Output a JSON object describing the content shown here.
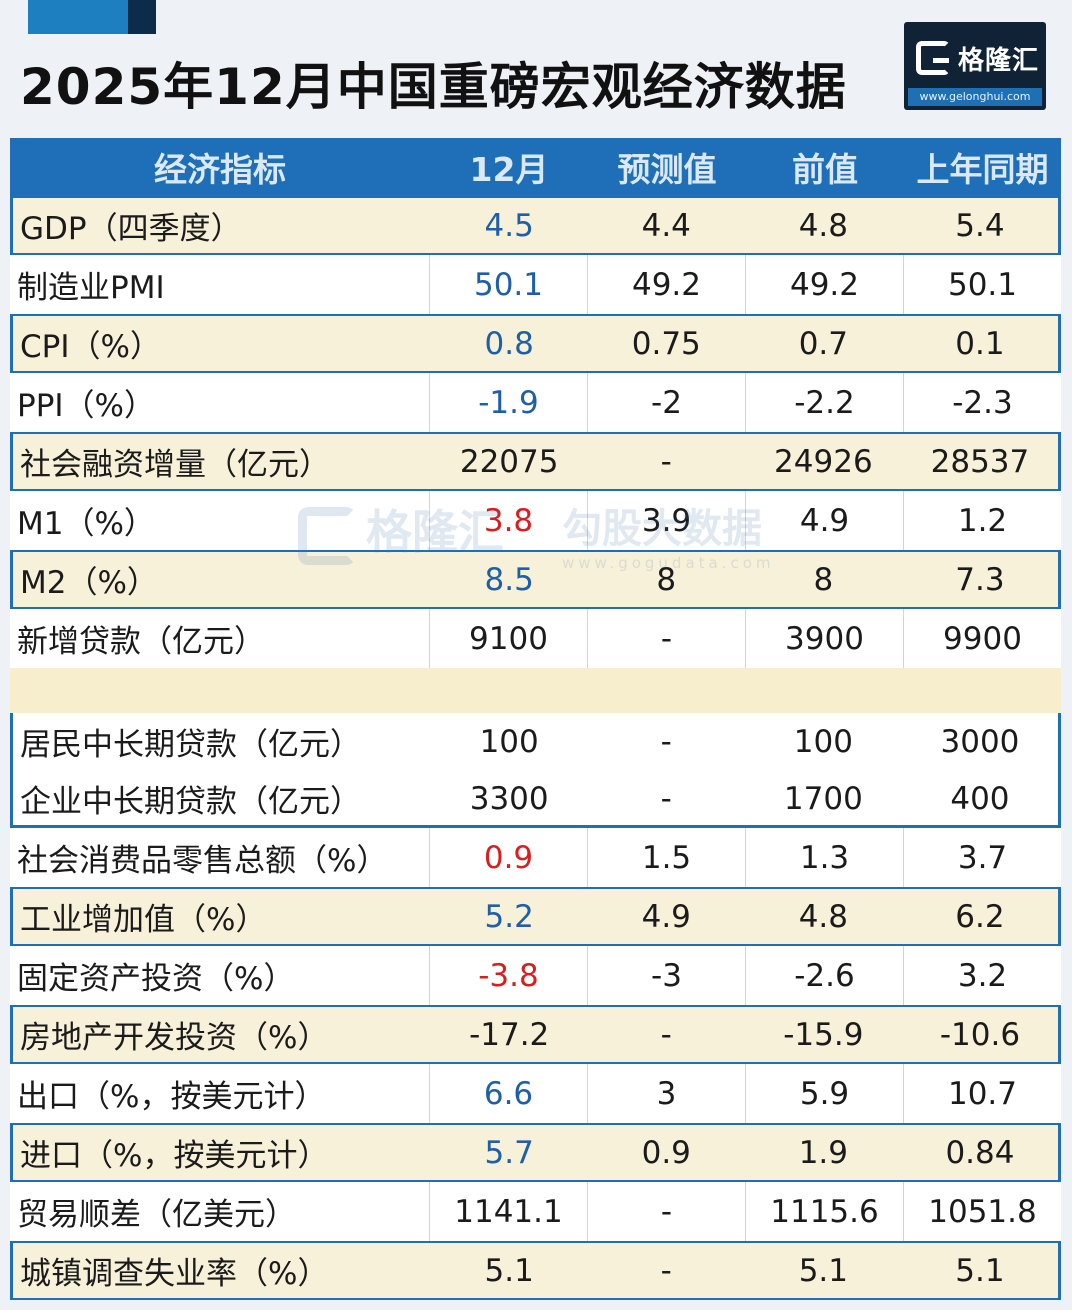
{
  "title": "2025年12月中国重磅宏观经济数据",
  "logo": {
    "name": "格隆汇",
    "url": "www.gelonghui.com"
  },
  "watermarks": {
    "left": "格隆汇",
    "right": "勾股大数据",
    "right_url": "www.gogudata.com"
  },
  "columns": [
    "经济指标",
    "12月",
    "预测值",
    "前值",
    "上年同期"
  ],
  "rows": [
    {
      "name": "GDP（四季度）",
      "cur": "4.5",
      "forecast": "4.4",
      "prev": "4.8",
      "last_year": "5.4",
      "cur_color": "blue"
    },
    {
      "name": "制造业PMI",
      "cur": "50.1",
      "forecast": "49.2",
      "prev": "49.2",
      "last_year": "50.1",
      "cur_color": "blue"
    },
    {
      "name": "CPI（%）",
      "cur": "0.8",
      "forecast": "0.75",
      "prev": "0.7",
      "last_year": "0.1",
      "cur_color": "blue"
    },
    {
      "name": "PPI（%）",
      "cur": "-1.9",
      "forecast": "-2",
      "prev": "-2.2",
      "last_year": "-2.3",
      "cur_color": "blue"
    },
    {
      "name": "社会融资增量（亿元）",
      "cur": "22075",
      "forecast": "-",
      "prev": "24926",
      "last_year": "28537",
      "cur_color": "black"
    },
    {
      "name": "M1（%）",
      "cur": "3.8",
      "forecast": "3.9",
      "prev": "4.9",
      "last_year": "1.2",
      "cur_color": "red"
    },
    {
      "name": "M2（%）",
      "cur": "8.5",
      "forecast": "8",
      "prev": "8",
      "last_year": "7.3",
      "cur_color": "blue"
    },
    {
      "name": "新增贷款（亿元）",
      "cur": "9100",
      "forecast": "-",
      "prev": "3900",
      "last_year": "9900",
      "cur_color": "black"
    },
    {
      "name": "居民中长期贷款（亿元）",
      "cur": "100",
      "forecast": "-",
      "prev": "100",
      "last_year": "3000",
      "cur_color": "black"
    },
    {
      "name": "企业中长期贷款（亿元）",
      "cur": "3300",
      "forecast": "-",
      "prev": "1700",
      "last_year": "400",
      "cur_color": "black"
    },
    {
      "name": "社会消费品零售总额（%）",
      "cur": "0.9",
      "forecast": "1.5",
      "prev": "1.3",
      "last_year": "3.7",
      "cur_color": "red"
    },
    {
      "name": "工业增加值（%）",
      "cur": "5.2",
      "forecast": "4.9",
      "prev": "4.8",
      "last_year": "6.2",
      "cur_color": "blue"
    },
    {
      "name": "固定资产投资（%）",
      "cur": "-3.8",
      "forecast": "-3",
      "prev": "-2.6",
      "last_year": "3.2",
      "cur_color": "red"
    },
    {
      "name": "房地产开发投资（%）",
      "cur": "-17.2",
      "forecast": "-",
      "prev": "-15.9",
      "last_year": "-10.6",
      "cur_color": "black"
    },
    {
      "name": "出口（%，按美元计）",
      "cur": "6.6",
      "forecast": "3",
      "prev": "5.9",
      "last_year": "10.7",
      "cur_color": "blue"
    },
    {
      "name": "进口（%，按美元计）",
      "cur": "5.7",
      "forecast": "0.9",
      "prev": "1.9",
      "last_year": "0.84",
      "cur_color": "blue"
    },
    {
      "name": "贸易顺差（亿美元）",
      "cur": "1141.1",
      "forecast": "-",
      "prev": "1115.6",
      "last_year": "1051.8",
      "cur_color": "black"
    },
    {
      "name": "城镇调查失业率（%）",
      "cur": "5.1",
      "forecast": "-",
      "prev": "5.1",
      "last_year": "5.1",
      "cur_color": "black"
    }
  ]
}
